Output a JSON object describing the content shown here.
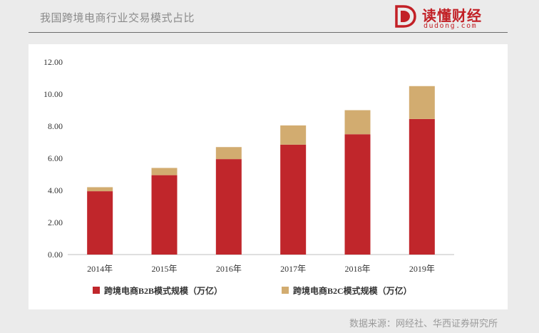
{
  "header": {
    "title": "我国跨境电商行业交易模式占比",
    "brand_name": "读懂财经",
    "brand_domain": "dudong.com"
  },
  "source_note": "数据来源：网经社、华西证券研究所",
  "colors": {
    "b2b": "#c0262b",
    "b2c": "#d2ac70",
    "accent": "#c22026"
  },
  "chart_data": {
    "type": "bar",
    "stacked": true,
    "title": "我国跨境电商行业交易模式占比",
    "categories": [
      "2014年",
      "2015年",
      "2016年",
      "2017年",
      "2018年",
      "2019年"
    ],
    "series": [
      {
        "name": "跨境电商B2B模式规模（万亿）",
        "values": [
          3.95,
          4.95,
          5.95,
          6.85,
          7.5,
          8.45
        ]
      },
      {
        "name": "跨境电商B2C模式规模（万亿）",
        "values": [
          0.25,
          0.45,
          0.75,
          1.2,
          1.5,
          2.05
        ]
      }
    ],
    "yticks": [
      "0.00",
      "2.00",
      "4.00",
      "6.00",
      "8.00",
      "10.00",
      "12.00"
    ],
    "ylim": [
      0,
      12
    ],
    "xlabel": "",
    "ylabel": "",
    "legend_position": "bottom"
  }
}
